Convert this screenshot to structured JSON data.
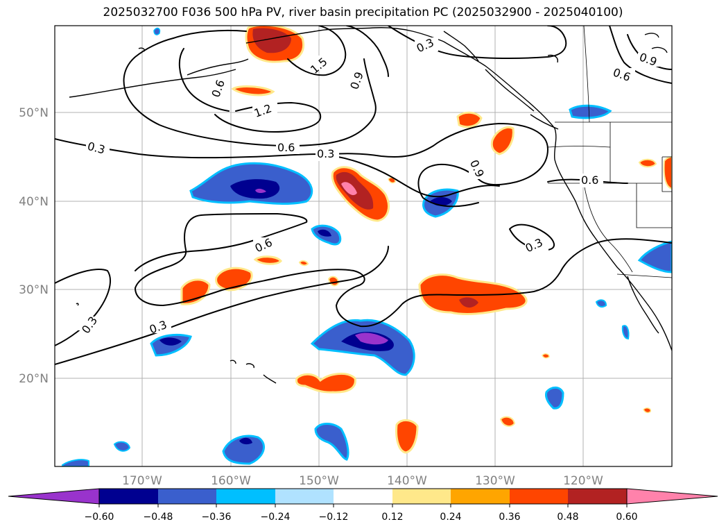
{
  "title": "2025032700 F036 500 hPa PV, river basin precipitation PC (2025032900 - 2025040100)",
  "lat_labels": [
    "50°N",
    "40°N",
    "30°N",
    "20°N"
  ],
  "lon_labels": [
    "170°W",
    "160°W",
    "150°W",
    "140°W",
    "130°W",
    "120°W"
  ],
  "contour_labels": [
    "0.3",
    "0.6",
    "0.9",
    "1.2",
    "1.5"
  ],
  "colorbar": {
    "ticks": [
      "−0.60",
      "−0.48",
      "−0.36",
      "−0.24",
      "−0.12",
      "0.12",
      "0.24",
      "0.36",
      "0.48",
      "0.60"
    ],
    "colors": [
      "#9933cc",
      "#000090",
      "#3a5fcd",
      "#00bfff",
      "#b0e2ff",
      "#ffffff",
      "#ffe88a",
      "#ffa500",
      "#ff4500",
      "#b22222",
      "#ff82ab"
    ]
  }
}
